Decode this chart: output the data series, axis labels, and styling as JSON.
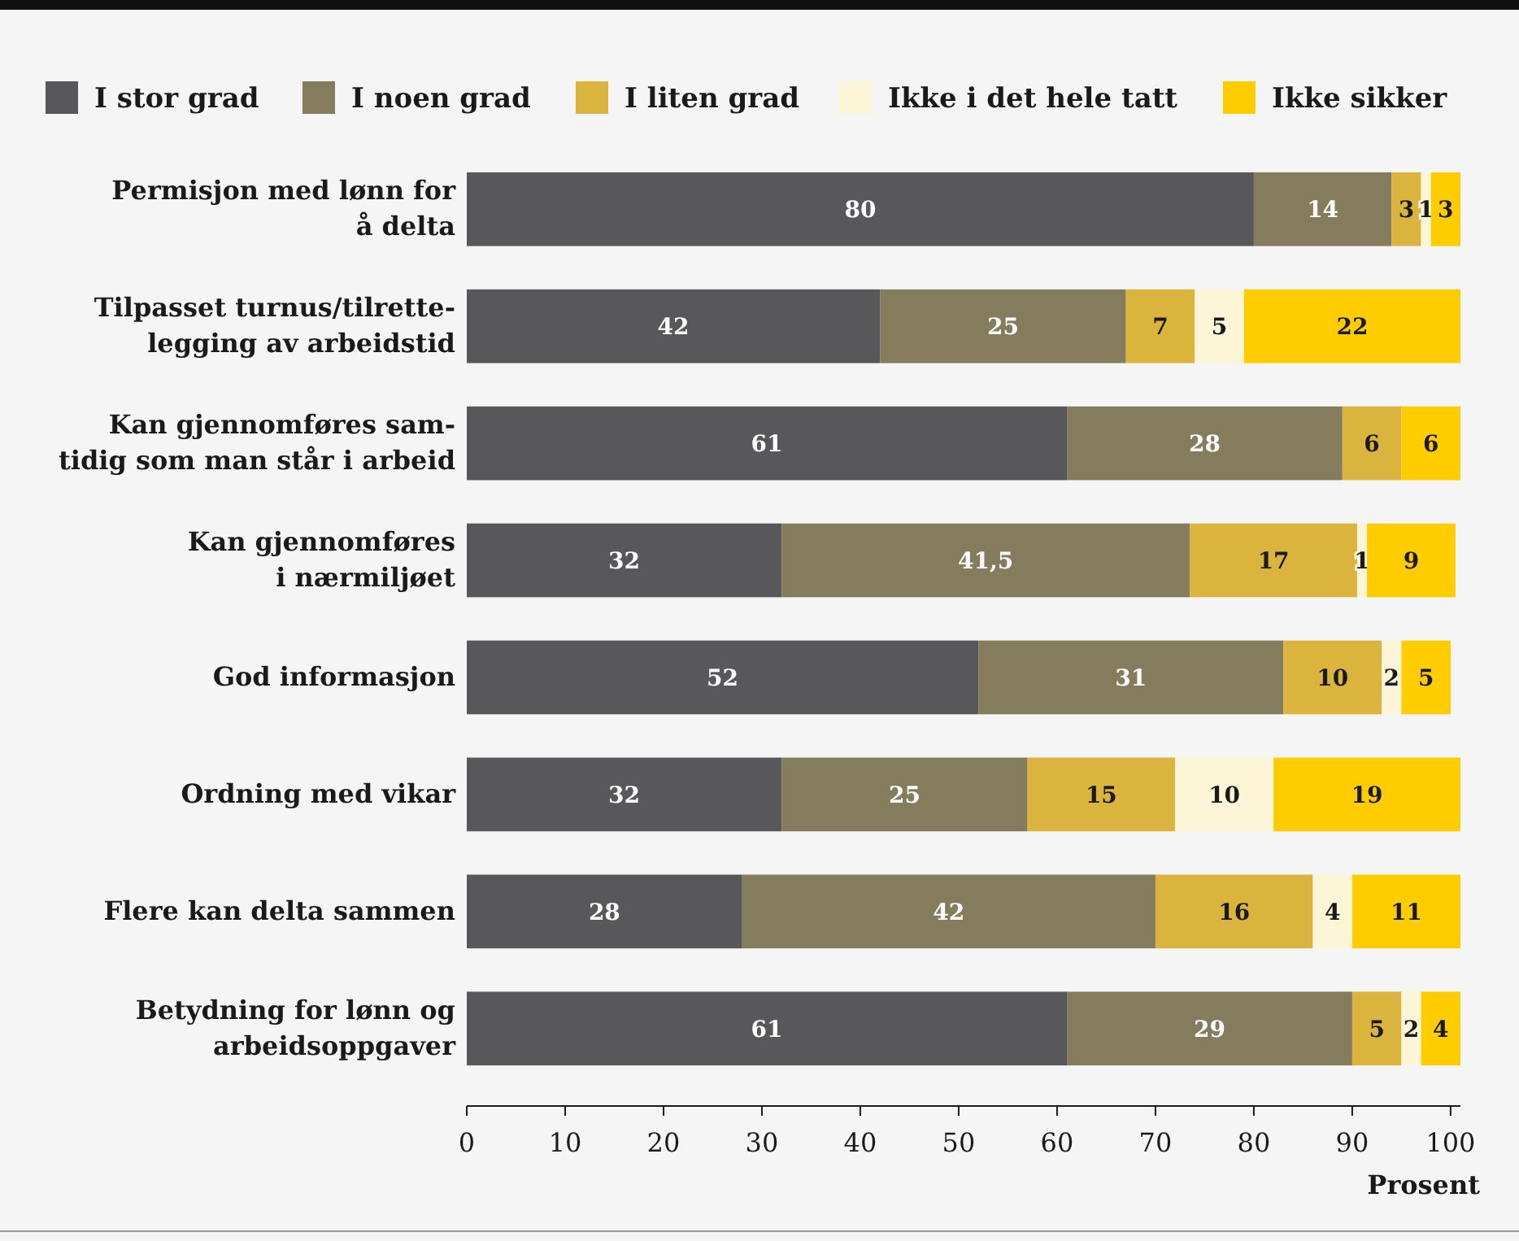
{
  "chart_data": {
    "type": "bar",
    "orientation": "horizontal",
    "stacked": true,
    "data_labels": true,
    "legend": "top",
    "grid": false,
    "xlabel": "Prosent",
    "categories": [
      "Permisjon med lønn for\nå delta",
      "Tilpasset turnus/tilrette-\nlegging av arbeidstid",
      "Kan gjennomføres sam-\ntidig som man står i arbeid",
      "Kan gjennomføres\ni nærmiljøet",
      "God informasjon",
      "Ordning med vikar",
      "Flere kan delta sammen",
      "Betydning for lønn og\narbeidsoppgaver"
    ],
    "series": [
      {
        "name": "I stor grad",
        "color": "#58585a",
        "values": [
          80,
          42,
          61,
          32,
          52,
          32,
          28,
          61
        ]
      },
      {
        "name": "I noen grad",
        "color": "#857c5d",
        "values": [
          14,
          25,
          28,
          41.5,
          31,
          25,
          42,
          29
        ],
        "value_labels": [
          "14",
          "25",
          "28",
          "41,5",
          "31",
          "25",
          "42",
          "29"
        ]
      },
      {
        "name": "I liten grad",
        "color": "#dbb43e",
        "values": [
          3,
          7,
          6,
          17,
          10,
          15,
          16,
          5
        ]
      },
      {
        "name": "Ikke i det hele tatt",
        "color": "#fdf5d8",
        "values": [
          1,
          5,
          null,
          1,
          2,
          10,
          4,
          2
        ]
      },
      {
        "name": "Ikke sikker",
        "color": "#ffcc00",
        "values": [
          3,
          22,
          6,
          9,
          5,
          19,
          11,
          4
        ]
      }
    ],
    "xlim": [
      0,
      101
    ],
    "xticks": [
      0,
      10,
      20,
      30,
      40,
      50,
      60,
      70,
      80,
      90,
      100
    ]
  }
}
